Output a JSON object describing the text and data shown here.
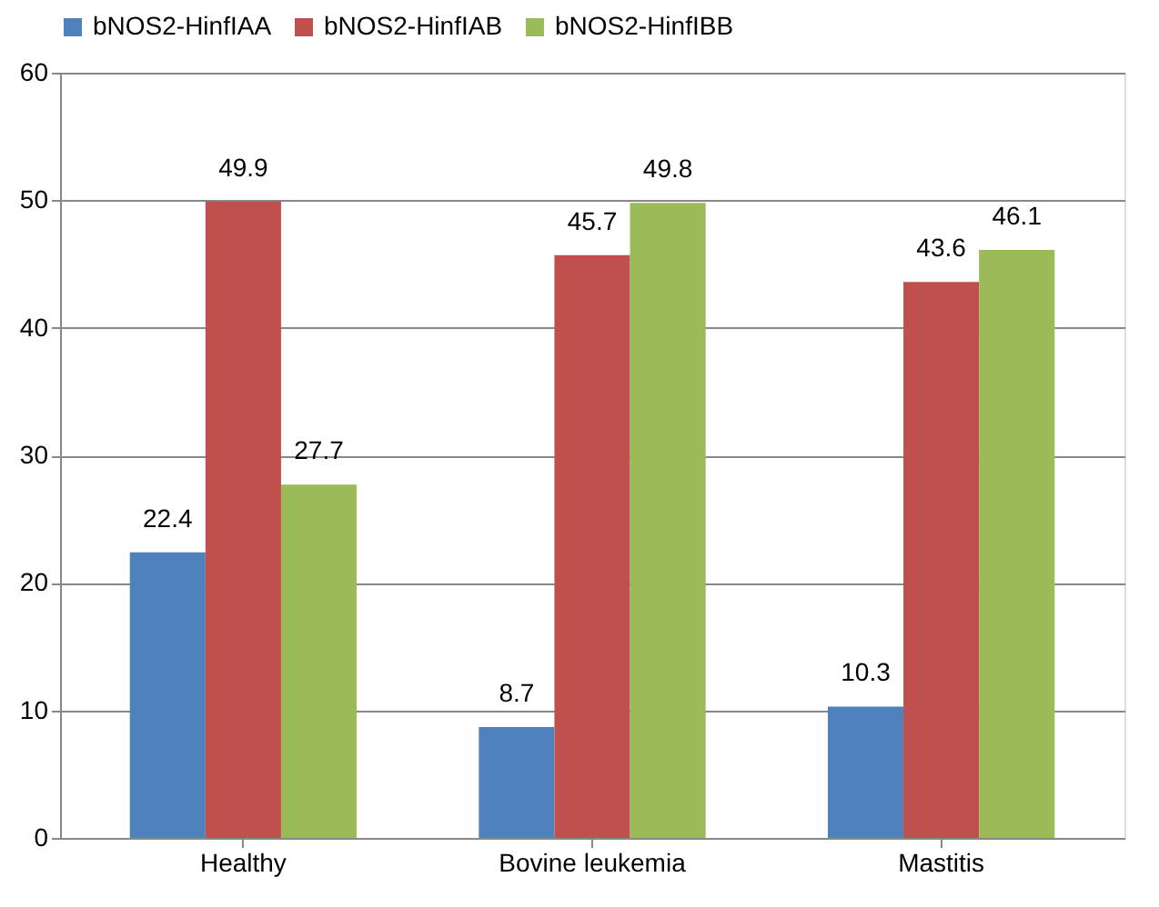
{
  "chart_data": {
    "type": "bar",
    "categories": [
      "Healthy",
      "Bovine leukemia",
      "Mastitis"
    ],
    "series": [
      {
        "name": "bNOS2-HinfIAA",
        "color": "#4f81bd",
        "values": [
          22.4,
          8.7,
          10.3
        ]
      },
      {
        "name": "bNOS2-HinfIAB",
        "color": "#c0504d",
        "values": [
          49.9,
          45.7,
          43.6
        ]
      },
      {
        "name": "bNOS2-HinfIBB",
        "color": "#9bbb59",
        "values": [
          27.7,
          49.8,
          46.1
        ]
      }
    ],
    "ylim": [
      0,
      60
    ],
    "yticks": [
      0,
      10,
      20,
      30,
      40,
      50,
      60
    ],
    "grid": "y",
    "legend": "top",
    "data_labels": true
  }
}
